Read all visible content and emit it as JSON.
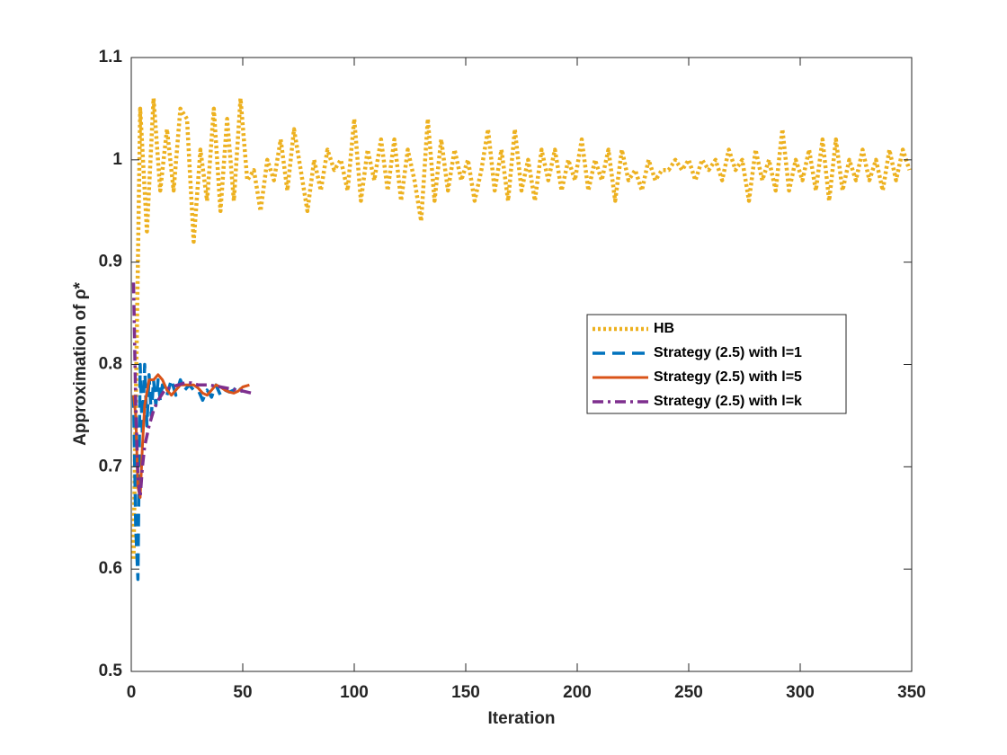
{
  "chart_data": {
    "type": "line",
    "xlabel": "Iteration",
    "ylabel": "Approximation of ρ*",
    "xlim": [
      0,
      350
    ],
    "xticks": [
      0,
      50,
      100,
      150,
      200,
      250,
      300,
      350
    ],
    "ylim": [
      0.5,
      1.1
    ],
    "yticks": [
      0.5,
      0.6,
      0.7,
      0.8,
      0.9,
      1,
      1.1
    ],
    "legend": "east",
    "series": [
      {
        "name": "HB",
        "color": "#EDB120",
        "style": "dotted",
        "x": [
          1,
          4,
          7,
          10,
          13,
          16,
          19,
          22,
          25,
          28,
          31,
          34,
          37,
          40,
          43,
          46,
          49,
          52,
          55,
          58,
          61,
          64,
          67,
          70,
          73,
          76,
          79,
          82,
          85,
          88,
          91,
          94,
          97,
          100,
          103,
          106,
          109,
          112,
          115,
          118,
          121,
          124,
          127,
          130,
          133,
          136,
          139,
          142,
          145,
          148,
          151,
          154,
          157,
          160,
          163,
          166,
          169,
          172,
          175,
          178,
          181,
          184,
          187,
          190,
          193,
          196,
          199,
          202,
          205,
          208,
          211,
          214,
          217,
          220,
          223,
          226,
          229,
          232,
          235,
          238,
          241,
          244,
          247,
          250,
          253,
          256,
          259,
          262,
          265,
          268,
          271,
          274,
          277,
          280,
          283,
          286,
          289,
          292,
          295,
          298,
          301,
          304,
          307,
          310,
          313,
          316,
          319,
          322,
          325,
          328,
          331,
          334,
          337,
          340,
          343,
          346,
          349
        ],
        "values": [
          0.61,
          1.05,
          0.93,
          1.06,
          0.97,
          1.03,
          0.97,
          1.05,
          1.04,
          0.92,
          1.01,
          0.96,
          1.05,
          0.95,
          1.04,
          0.96,
          1.06,
          0.98,
          0.99,
          0.95,
          1.0,
          0.98,
          1.02,
          0.97,
          1.03,
          0.99,
          0.95,
          1.0,
          0.97,
          1.01,
          0.99,
          1.0,
          0.97,
          1.04,
          0.96,
          1.01,
          0.98,
          1.02,
          0.97,
          1.02,
          0.96,
          1.01,
          0.98,
          0.94,
          1.04,
          0.96,
          1.02,
          0.97,
          1.01,
          0.98,
          1.0,
          0.96,
          0.99,
          1.03,
          0.97,
          1.01,
          0.96,
          1.03,
          0.97,
          1.0,
          0.96,
          1.01,
          0.98,
          1.01,
          0.97,
          1.0,
          0.98,
          1.02,
          0.97,
          1.0,
          0.98,
          1.01,
          0.96,
          1.01,
          0.98,
          0.99,
          0.97,
          1.0,
          0.98,
          0.99,
          0.99,
          1.0,
          0.99,
          1.0,
          0.98,
          1.0,
          0.99,
          1.0,
          0.98,
          1.01,
          0.99,
          1.0,
          0.96,
          1.01,
          0.98,
          1.0,
          0.97,
          1.03,
          0.97,
          1.0,
          0.98,
          1.01,
          0.97,
          1.02,
          0.96,
          1.02,
          0.97,
          1.0,
          0.98,
          1.01,
          0.98,
          1.0,
          0.97,
          1.01,
          0.98,
          1.01,
          0.99
        ]
      },
      {
        "name": "Strategy (2.5) with l=1",
        "color": "#0072BD",
        "style": "dashed",
        "x": [
          1,
          2,
          3,
          4,
          5,
          6,
          7,
          8,
          9,
          10,
          11,
          12,
          13,
          14,
          16,
          18,
          20,
          22,
          24,
          26,
          28,
          30,
          32,
          34,
          36,
          38,
          40,
          42,
          44,
          46,
          48,
          50
        ],
        "values": [
          0.77,
          0.64,
          0.59,
          0.8,
          0.73,
          0.8,
          0.74,
          0.79,
          0.75,
          0.785,
          0.76,
          0.785,
          0.765,
          0.78,
          0.77,
          0.785,
          0.77,
          0.785,
          0.775,
          0.78,
          0.775,
          0.775,
          0.765,
          0.775,
          0.768,
          0.78,
          0.77,
          0.775,
          0.773,
          0.775,
          0.78,
          0.773
        ]
      },
      {
        "name": "Strategy (2.5) with l=5",
        "color": "#D95319",
        "style": "solid",
        "x": [
          1,
          2,
          3,
          4,
          5,
          6,
          8,
          10,
          12,
          14,
          16,
          18,
          20,
          22,
          24,
          26,
          28,
          30,
          32,
          34,
          36,
          38,
          40,
          42,
          44,
          46,
          48,
          50,
          53
        ],
        "values": [
          0.77,
          0.75,
          0.68,
          0.67,
          0.72,
          0.76,
          0.785,
          0.785,
          0.79,
          0.785,
          0.775,
          0.77,
          0.775,
          0.78,
          0.78,
          0.78,
          0.78,
          0.777,
          0.772,
          0.77,
          0.775,
          0.78,
          0.778,
          0.775,
          0.773,
          0.772,
          0.774,
          0.778,
          0.78
        ]
      },
      {
        "name": "Strategy (2.5) with l=k",
        "color": "#7E2F8E",
        "style": "dashdot",
        "x": [
          1,
          2,
          3,
          4,
          5,
          6,
          8,
          10,
          12,
          15,
          18,
          21,
          24,
          27,
          30,
          35,
          40,
          45,
          50,
          54
        ],
        "values": [
          0.88,
          0.76,
          0.69,
          0.67,
          0.7,
          0.72,
          0.74,
          0.755,
          0.765,
          0.775,
          0.778,
          0.78,
          0.782,
          0.782,
          0.78,
          0.78,
          0.778,
          0.776,
          0.774,
          0.772
        ]
      }
    ]
  }
}
